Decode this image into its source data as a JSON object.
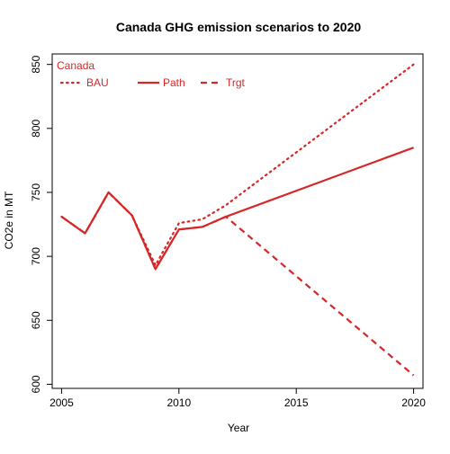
{
  "chart_data": {
    "type": "line",
    "title": "Canada GHG emission scenarios to 2020",
    "xlabel": "Year",
    "ylabel": "CO2e in MT",
    "xlim": [
      2004.6,
      2020.4
    ],
    "ylim": [
      596.8,
      858.2
    ],
    "x_ticks": [
      2005,
      2010,
      2015,
      2020
    ],
    "y_ticks": [
      600,
      650,
      700,
      750,
      800,
      850
    ],
    "legend": {
      "title": "Canada",
      "position": "top-left",
      "entries": [
        "BAU",
        "Path",
        "Trgt"
      ]
    },
    "series": [
      {
        "name": "BAU",
        "line_style": "dotted",
        "color": "#d62728",
        "points": [
          [
            2005,
            731
          ],
          [
            2006,
            718
          ],
          [
            2007,
            750
          ],
          [
            2008,
            732
          ],
          [
            2009,
            693
          ],
          [
            2010,
            726
          ],
          [
            2011,
            729
          ],
          [
            2012,
            740
          ],
          [
            2020,
            850
          ]
        ]
      },
      {
        "name": "Path",
        "line_style": "solid",
        "color": "#d62728",
        "points": [
          [
            2005,
            731
          ],
          [
            2006,
            718
          ],
          [
            2007,
            750
          ],
          [
            2008,
            732
          ],
          [
            2009,
            690
          ],
          [
            2010,
            721
          ],
          [
            2011,
            723
          ],
          [
            2012,
            731
          ],
          [
            2020,
            785
          ]
        ]
      },
      {
        "name": "Trgt",
        "line_style": "dashed",
        "color": "#d62728",
        "points": [
          [
            2005,
            731
          ],
          [
            2006,
            718
          ],
          [
            2007,
            750
          ],
          [
            2008,
            732
          ],
          [
            2009,
            690
          ],
          [
            2010,
            721
          ],
          [
            2011,
            723
          ],
          [
            2012,
            731
          ],
          [
            2020,
            607
          ]
        ]
      }
    ],
    "grid": false
  }
}
